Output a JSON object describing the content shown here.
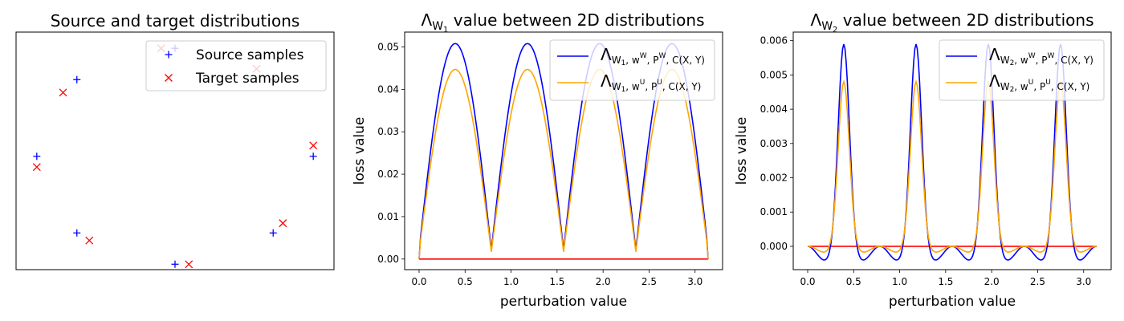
{
  "chart_data": [
    {
      "type": "scatter",
      "title": "Source and target distributions",
      "xlabel": "",
      "ylabel": "",
      "grid": false,
      "legend": "top-right",
      "xlim": [
        -1.15,
        1.15
      ],
      "ylim": [
        -1.05,
        1.15
      ],
      "series": [
        {
          "name": "Source samples",
          "marker": "plus",
          "color": "#0000ff",
          "points": [
            [
              0.0,
              1.0
            ],
            [
              -0.71,
              0.71
            ],
            [
              -1.0,
              0.0
            ],
            [
              -0.71,
              -0.71
            ],
            [
              0.0,
              -1.0
            ],
            [
              0.71,
              -0.71
            ],
            [
              1.0,
              0.0
            ],
            [
              0.71,
              0.71
            ]
          ]
        },
        {
          "name": "Target samples",
          "marker": "x",
          "color": "#ff0000",
          "points": [
            [
              -0.1,
              1.0
            ],
            [
              -0.81,
              0.59
            ],
            [
              -1.0,
              -0.1
            ],
            [
              -0.62,
              -0.78
            ],
            [
              0.1,
              -1.0
            ],
            [
              0.78,
              -0.62
            ],
            [
              1.0,
              0.1
            ],
            [
              0.59,
              0.81
            ]
          ]
        }
      ]
    },
    {
      "type": "line",
      "title_main": "Λ",
      "title_sub": "W",
      "title_subsub": "1",
      "title_rest": " value between 2D distributions",
      "xlabel": "perturbation value",
      "ylabel": "loss value",
      "grid": false,
      "legend": "top-right",
      "xlim": [
        -0.157,
        3.299
      ],
      "ylim": [
        -0.0025,
        0.0535
      ],
      "xticks": [
        "0.0",
        "0.5",
        "1.0",
        "1.5",
        "2.0",
        "2.5",
        "3.0"
      ],
      "yticks": [
        "0.00",
        "0.01",
        "0.02",
        "0.03",
        "0.04",
        "0.05"
      ],
      "series": [
        {
          "name_main": "Λ",
          "name_sub": "W",
          "name_subsub": "1",
          "name_rest": ", w",
          "name_sup1": "W",
          "name_mid": ", P",
          "name_sup2": "W",
          "name_end": ", C(X, Y)",
          "color": "#0000ff",
          "peak": 0.0508,
          "trough": 0.0021
        },
        {
          "name_main": "Λ",
          "name_sub": "W",
          "name_subsub": "1",
          "name_rest": ", w",
          "name_sup1": "U",
          "name_mid": ", P",
          "name_sup2": "U",
          "name_end": ", C(X, Y)",
          "color": "#ffa500",
          "peak": 0.0447,
          "trough": 0.0017
        },
        {
          "color": "#ff0000",
          "baseline": 0.0
        }
      ]
    },
    {
      "type": "line",
      "title_main": "Λ",
      "title_sub": "W",
      "title_subsub": "2",
      "title_rest": " value between 2D distributions",
      "xlabel": "perturbation value",
      "ylabel": "loss value",
      "grid": false,
      "legend": "top-right",
      "xlim": [
        -0.157,
        3.299
      ],
      "ylim": [
        -0.00068,
        0.00625
      ],
      "xticks": [
        "0.0",
        "0.5",
        "1.0",
        "1.5",
        "2.0",
        "2.5",
        "3.0"
      ],
      "yticks": [
        "0.000",
        "0.001",
        "0.002",
        "0.003",
        "0.004",
        "0.005",
        "0.006"
      ],
      "series": [
        {
          "name_main": "Λ",
          "name_sub": "W",
          "name_subsub": "2",
          "name_rest": ", w",
          "name_sup1": "W",
          "name_mid": ", P",
          "name_sup2": "W",
          "name_end": ", C(X, Y)",
          "color": "#0000ff",
          "peak": 0.0059,
          "dip": -0.00042
        },
        {
          "name_main": "Λ",
          "name_sub": "W",
          "name_subsub": "2",
          "name_rest": ", w",
          "name_sup1": "U",
          "name_mid": ", P",
          "name_sup2": "U",
          "name_end": ", C(X, Y)",
          "color": "#ffa500",
          "peak": 0.0048,
          "dip": -0.00018
        },
        {
          "color": "#ff0000",
          "baseline": 0.0
        }
      ]
    }
  ]
}
